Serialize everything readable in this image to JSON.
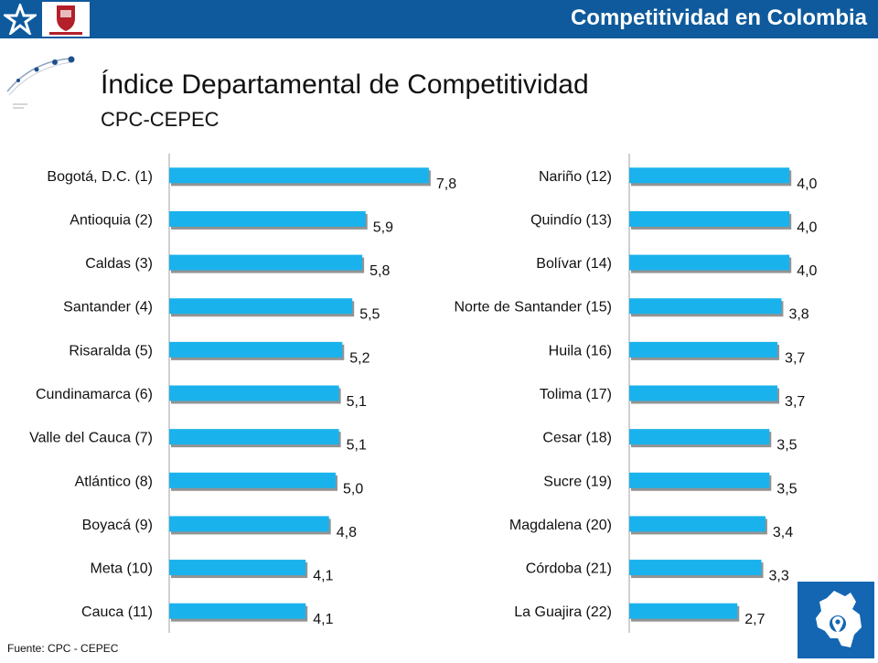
{
  "header": {
    "title": "Competitividad en Colombia"
  },
  "slide": {
    "title": "Índice Departamental de Competitividad",
    "subtitle": "CPC-CEPEC",
    "source": "Fuente: CPC - CEPEC"
  },
  "colors": {
    "bar": "#1ab2ec",
    "bar_shadow": "#3a3a3a",
    "header_bg": "#0e5a9c",
    "map_tile": "#1466b3"
  },
  "icons": {
    "logo": "star-logo-icon",
    "university": "university-crest-icon",
    "map": "colombia-map-pin-icon"
  },
  "chart_data": [
    {
      "type": "bar",
      "orientation": "horizontal",
      "categories": [
        "Bogotá, D.C. (1)",
        "Antioquia (2)",
        "Caldas (3)",
        "Santander (4)",
        "Risaralda (5)",
        "Cundinamarca (6)",
        "Valle del Cauca (7)",
        "Atlántico (8)",
        "Boyacá (9)",
        "Meta (10)",
        "Cauca (11)"
      ],
      "values": [
        7.8,
        5.9,
        5.8,
        5.5,
        5.2,
        5.1,
        5.1,
        5.0,
        4.8,
        4.1,
        4.1
      ],
      "value_labels": [
        "7,8",
        "5,9",
        "5,8",
        "5,5",
        "5,2",
        "5,1",
        "5,1",
        "5,0",
        "4,8",
        "4,1",
        "4,1"
      ],
      "xlim": [
        0,
        10
      ],
      "grid": false
    },
    {
      "type": "bar",
      "orientation": "horizontal",
      "categories": [
        "Nariño (12)",
        "Quindío (13)",
        "Bolívar (14)",
        "Norte de Santander (15)",
        "Huila (16)",
        "Tolima (17)",
        "Cesar (18)",
        "Sucre (19)",
        "Magdalena (20)",
        "Córdoba (21)",
        "La Guajira (22)"
      ],
      "values": [
        4.0,
        4.0,
        4.0,
        3.8,
        3.7,
        3.7,
        3.5,
        3.5,
        3.4,
        3.3,
        2.7
      ],
      "value_labels": [
        "4,0",
        "4,0",
        "4,0",
        "3,8",
        "3,7",
        "3,7",
        "3,5",
        "3,5",
        "3,4",
        "3,3",
        "2,7"
      ],
      "xlim": [
        0,
        10
      ],
      "grid": false
    }
  ]
}
